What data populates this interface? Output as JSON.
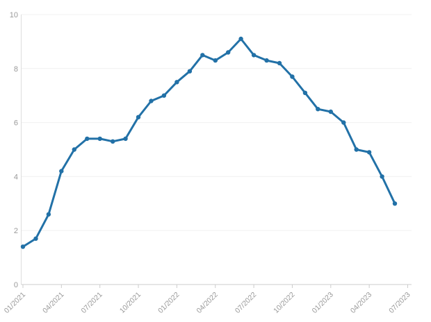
{
  "colors": {
    "series": "#2271a7",
    "grid": "#f0f0f0",
    "axis": "#cccccc",
    "tick_label": "#999999",
    "background": "#ffffff"
  },
  "chart_data": {
    "type": "line",
    "title": "",
    "xlabel": "",
    "ylabel": "",
    "legend": "none",
    "grid": "horizontal",
    "marker": "circle",
    "x_label_rotation_deg": -45,
    "ylim": [
      0,
      10
    ],
    "y_ticks": [
      0,
      2,
      4,
      6,
      8,
      10
    ],
    "categories": [
      "01/2021",
      "02/2021",
      "03/2021",
      "04/2021",
      "05/2021",
      "06/2021",
      "07/2021",
      "08/2021",
      "09/2021",
      "10/2021",
      "11/2021",
      "12/2021",
      "01/2022",
      "02/2022",
      "03/2022",
      "04/2022",
      "05/2022",
      "06/2022",
      "07/2022",
      "08/2022",
      "09/2022",
      "10/2022",
      "11/2022",
      "12/2022",
      "01/2023",
      "02/2023",
      "03/2023",
      "04/2023",
      "05/2023",
      "06/2023"
    ],
    "values": [
      1.4,
      1.7,
      2.6,
      4.2,
      5.0,
      5.4,
      5.4,
      5.3,
      5.4,
      6.2,
      6.8,
      7.0,
      7.5,
      7.9,
      8.5,
      8.3,
      8.6,
      9.1,
      8.5,
      8.3,
      8.2,
      7.7,
      7.1,
      6.5,
      6.4,
      6.0,
      5.0,
      4.9,
      4.0,
      3.0
    ],
    "x_tick_labels": [
      "01/2021",
      "04/2021",
      "07/2021",
      "10/2021",
      "01/2022",
      "04/2022",
      "07/2022",
      "10/2022",
      "01/2023",
      "04/2023",
      "07/2023"
    ],
    "x_tick_month_indices": [
      0,
      3,
      6,
      9,
      12,
      15,
      18,
      21,
      24,
      27,
      30
    ]
  }
}
